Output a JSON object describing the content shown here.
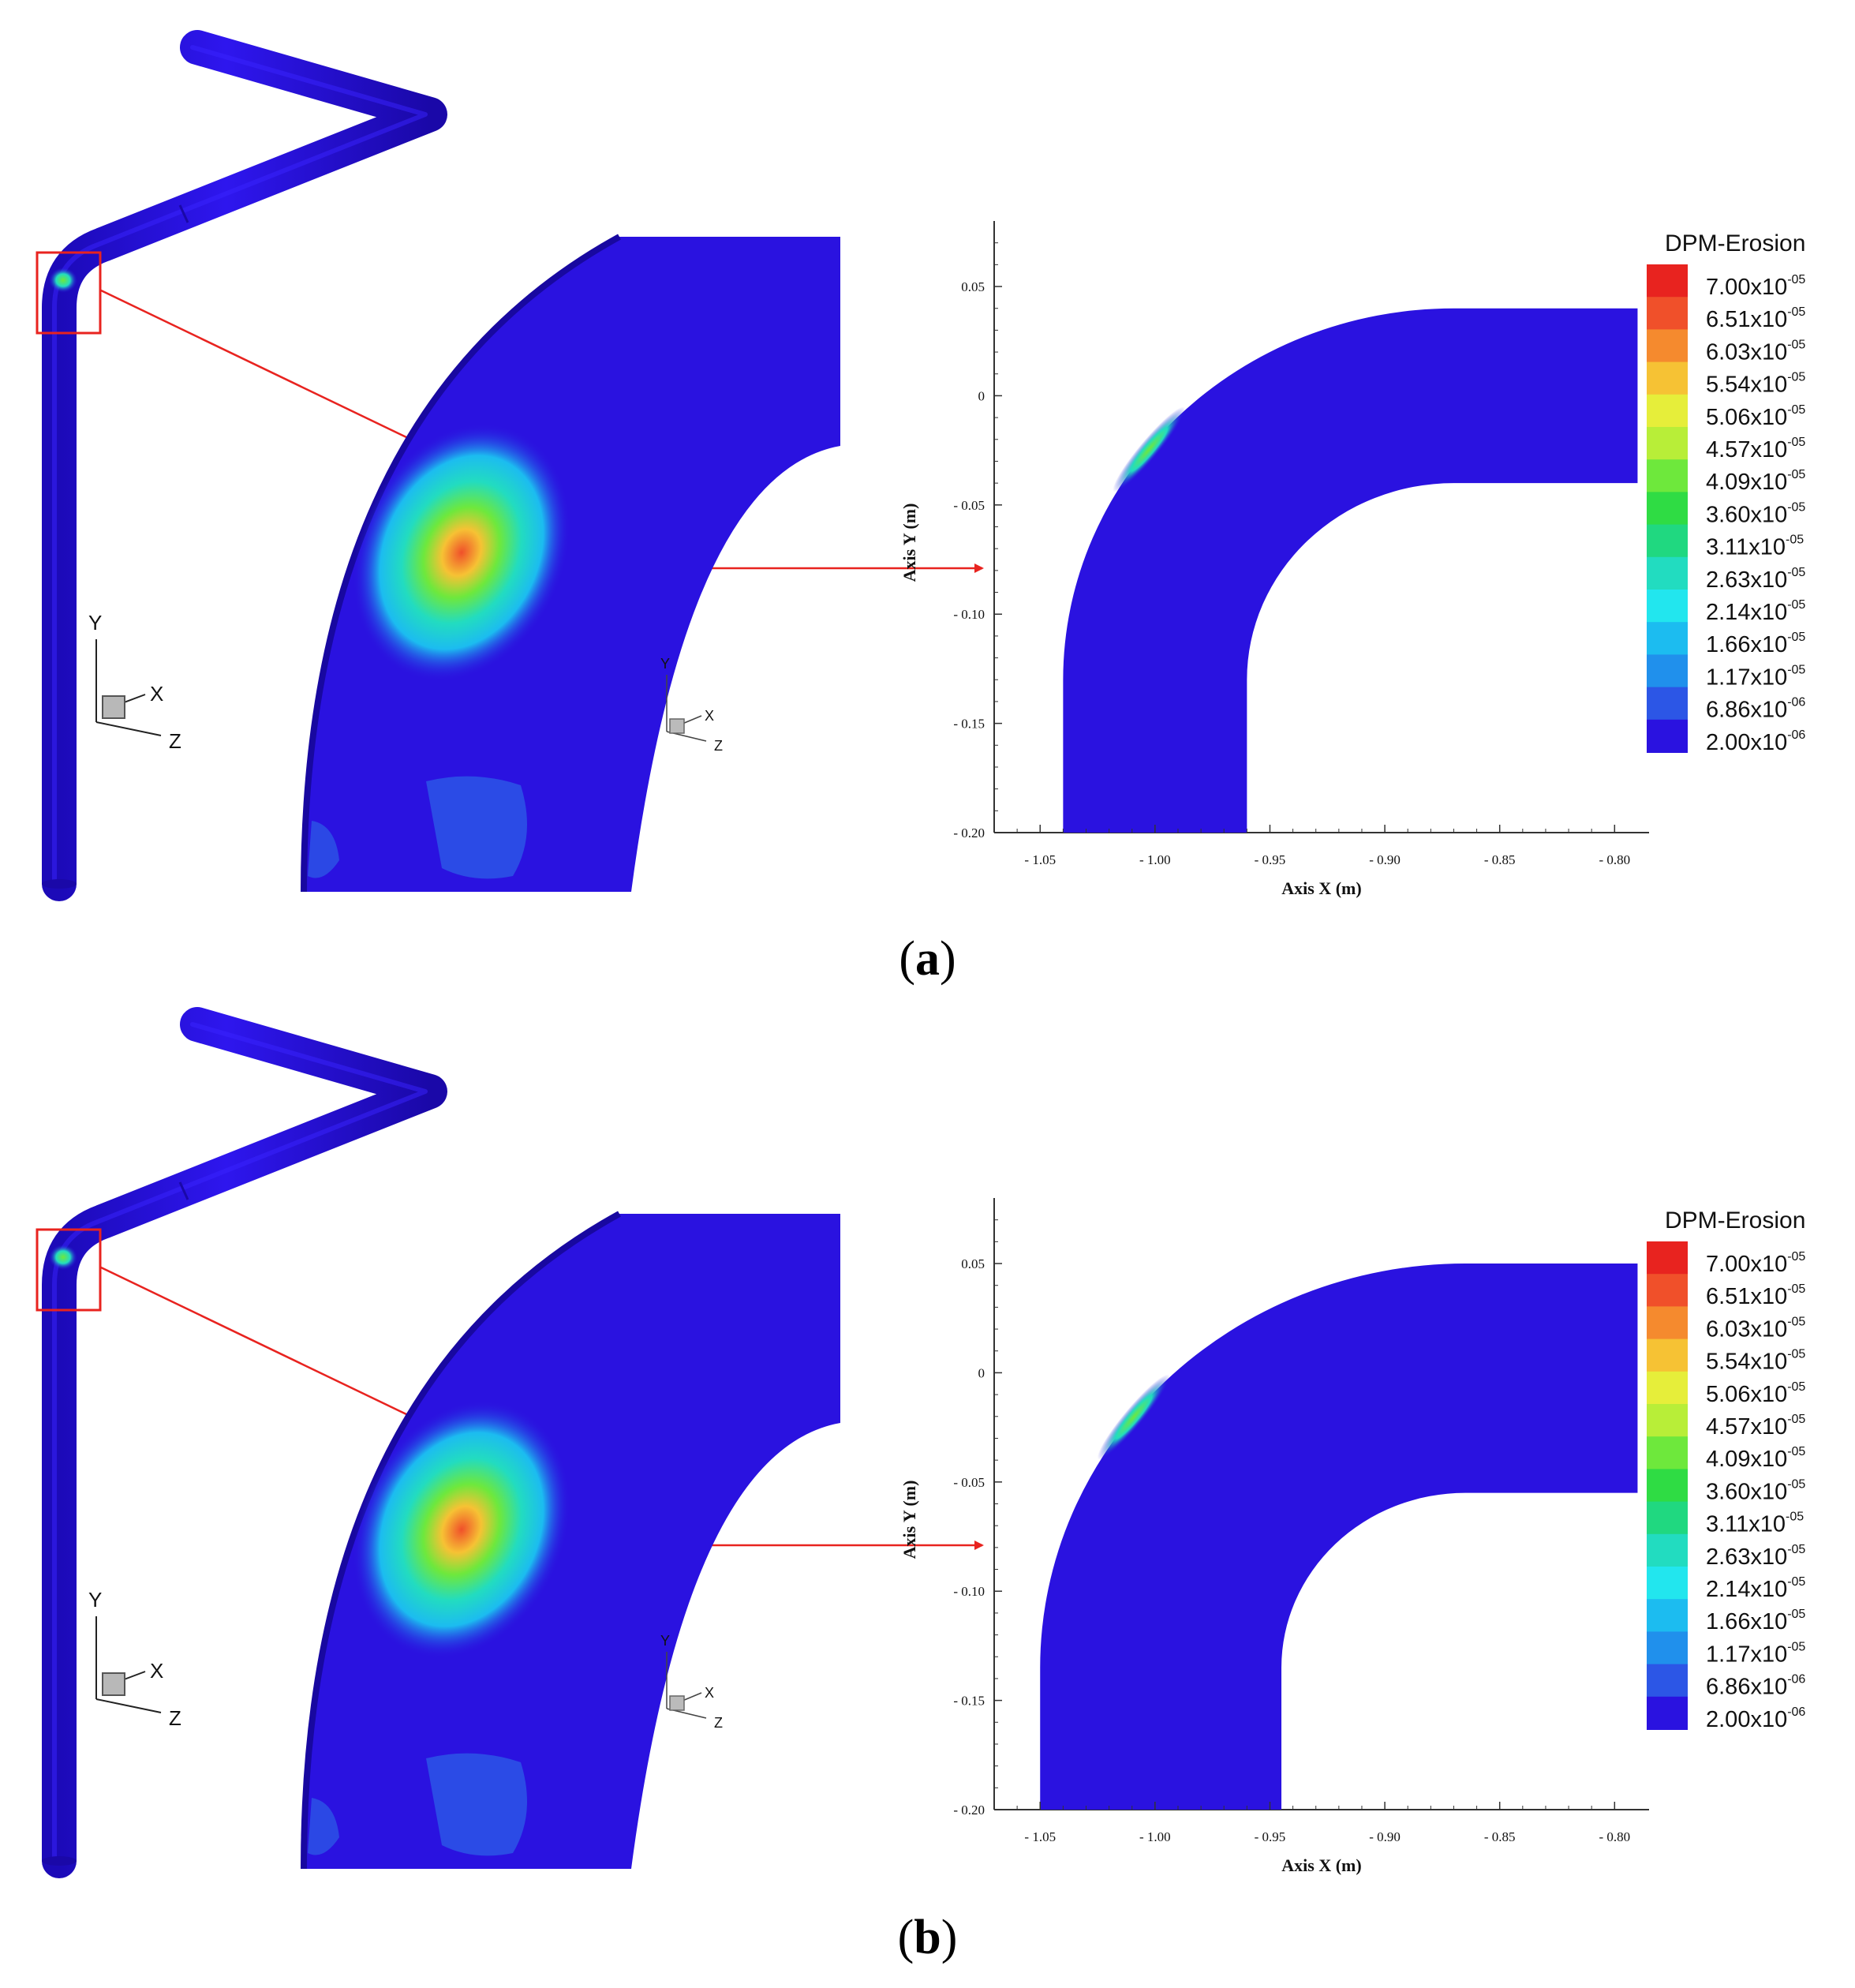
{
  "panels": [
    {
      "label": "a",
      "axis_x_title": "Axis X (m)",
      "axis_y_title": "Axis Y (m)",
      "x_ticks": [
        "- 1.05",
        "- 1.00",
        "- 0.95",
        "- 0.90",
        "- 0.85",
        "- 0.80"
      ],
      "y_ticks": [
        "0.05",
        "0",
        "- 0.05",
        "- 0.10",
        "- 0.15",
        "- 0.20"
      ],
      "triad": {
        "y": "Y",
        "x": "X",
        "z": "Z"
      },
      "legend": {
        "title": "DPM-Erosion",
        "levels": [
          {
            "mantissa": "7.00x10",
            "exp": "-05"
          },
          {
            "mantissa": "6.51x10",
            "exp": "-05"
          },
          {
            "mantissa": "6.03x10",
            "exp": "-05"
          },
          {
            "mantissa": "5.54x10",
            "exp": "-05"
          },
          {
            "mantissa": "5.06x10",
            "exp": "-05"
          },
          {
            "mantissa": "4.57x10",
            "exp": "-05"
          },
          {
            "mantissa": "4.09x10",
            "exp": "-05"
          },
          {
            "mantissa": "3.60x10",
            "exp": "-05"
          },
          {
            "mantissa": "3.11x10",
            "exp": "-05"
          },
          {
            "mantissa": "2.63x10",
            "exp": "-05"
          },
          {
            "mantissa": "2.14x10",
            "exp": "-05"
          },
          {
            "mantissa": "1.66x10",
            "exp": "-05"
          },
          {
            "mantissa": "1.17x10",
            "exp": "-05"
          },
          {
            "mantissa": "6.86x10",
            "exp": "-06"
          },
          {
            "mantissa": "2.00x10",
            "exp": "-06"
          }
        ]
      }
    },
    {
      "label": "b",
      "axis_x_title": "Axis X (m)",
      "axis_y_title": "Axis Y (m)",
      "x_ticks": [
        "- 1.05",
        "- 1.00",
        "- 0.95",
        "- 0.90",
        "- 0.85",
        "- 0.80"
      ],
      "y_ticks": [
        "0.05",
        "0",
        "- 0.05",
        "- 0.10",
        "- 0.15",
        "- 0.20"
      ],
      "triad": {
        "y": "Y",
        "x": "X",
        "z": "Z"
      },
      "legend": {
        "title": "DPM-Erosion",
        "levels": [
          {
            "mantissa": "7.00x10",
            "exp": "-05"
          },
          {
            "mantissa": "6.51x10",
            "exp": "-05"
          },
          {
            "mantissa": "6.03x10",
            "exp": "-05"
          },
          {
            "mantissa": "5.54x10",
            "exp": "-05"
          },
          {
            "mantissa": "5.06x10",
            "exp": "-05"
          },
          {
            "mantissa": "4.57x10",
            "exp": "-05"
          },
          {
            "mantissa": "4.09x10",
            "exp": "-05"
          },
          {
            "mantissa": "3.60x10",
            "exp": "-05"
          },
          {
            "mantissa": "3.11x10",
            "exp": "-05"
          },
          {
            "mantissa": "2.63x10",
            "exp": "-05"
          },
          {
            "mantissa": "2.14x10",
            "exp": "-05"
          },
          {
            "mantissa": "1.66x10",
            "exp": "-05"
          },
          {
            "mantissa": "1.17x10",
            "exp": "-05"
          },
          {
            "mantissa": "6.86x10",
            "exp": "-06"
          },
          {
            "mantissa": "2.00x10",
            "exp": "-06"
          }
        ]
      }
    }
  ],
  "colors": {
    "pipe": "#2a12e0",
    "pipe_dark": "#1a0aa8",
    "highlight": "#e8231f",
    "scale": [
      "#e8231f",
      "#f0502a",
      "#f58a2e",
      "#f6c234",
      "#e6ee3a",
      "#b8ee38",
      "#6ee83c",
      "#2fdc44",
      "#20d880",
      "#22dcc0",
      "#22e6ee",
      "#1cbcf0",
      "#2090ec",
      "#2c56e6",
      "#2a12e0"
    ]
  }
}
